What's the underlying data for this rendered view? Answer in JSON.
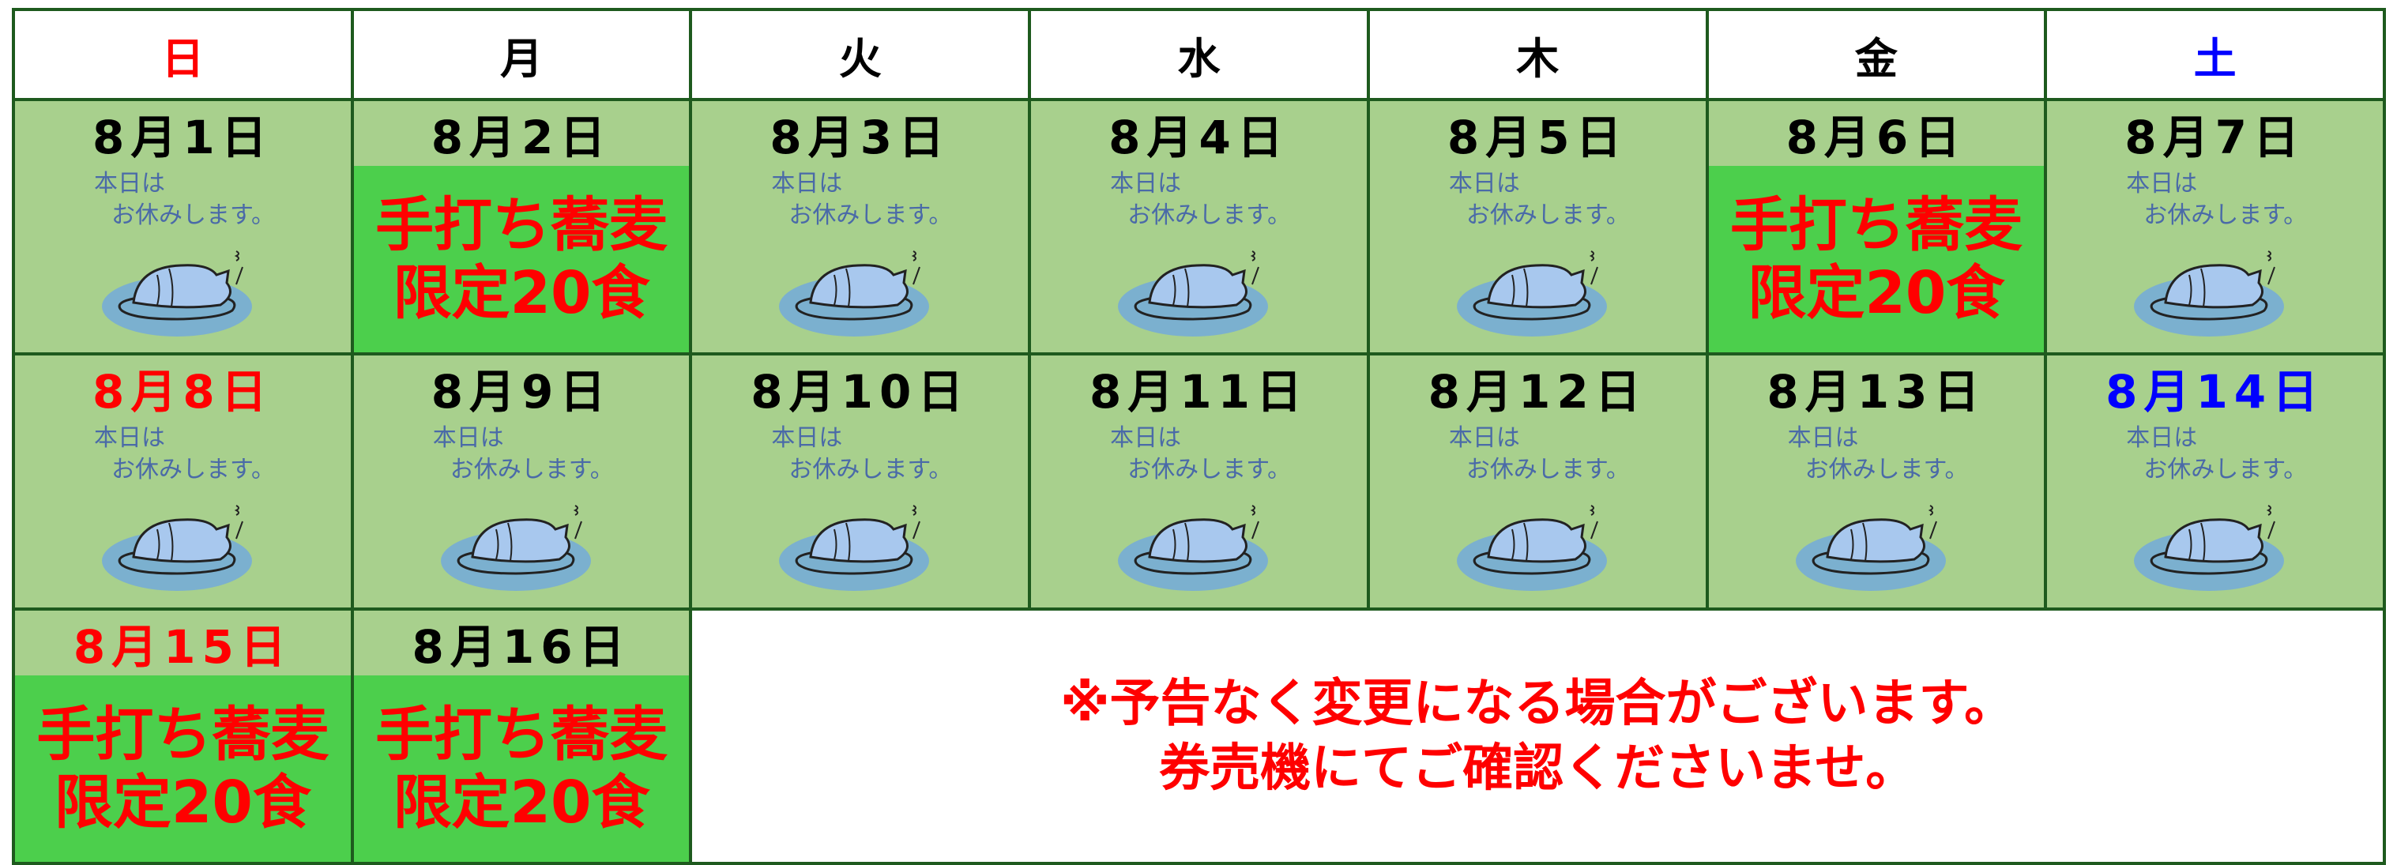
{
  "header": {
    "days": [
      {
        "label": "日",
        "color": "#ff0000"
      },
      {
        "label": "月",
        "color": "#000000"
      },
      {
        "label": "火",
        "color": "#000000"
      },
      {
        "label": "水",
        "color": "#000000"
      },
      {
        "label": "木",
        "color": "#000000"
      },
      {
        "label": "金",
        "color": "#000000"
      },
      {
        "label": "土",
        "color": "#0000ff"
      }
    ]
  },
  "cells": [
    {
      "date": "8月1日",
      "color": "#000000",
      "note": [
        "本日は",
        "お休みします。"
      ]
    },
    {
      "date": "8月2日",
      "color": "#000000",
      "special": [
        "手打ち蕎麦",
        "限定20食"
      ]
    },
    {
      "date": "8月3日",
      "color": "#000000",
      "note": [
        "本日は",
        "お休みします。"
      ]
    },
    {
      "date": "8月4日",
      "color": "#000000",
      "note": [
        "本日は",
        "お休みします。"
      ]
    },
    {
      "date": "8月5日",
      "color": "#000000",
      "note": [
        "本日は",
        "お休みします。"
      ]
    },
    {
      "date": "8月6日",
      "color": "#000000",
      "special": [
        "手打ち蕎麦",
        "限定20食"
      ]
    },
    {
      "date": "8月7日",
      "color": "#000000",
      "note": [
        "本日は",
        "お休みします。"
      ]
    },
    {
      "date": "8月8日",
      "color": "#ff0000",
      "note": [
        "本日は",
        "お休みします。"
      ]
    },
    {
      "date": "8月9日",
      "color": "#000000",
      "note": [
        "本日は",
        "お休みします。"
      ]
    },
    {
      "date": "8月10日",
      "color": "#000000",
      "note": [
        "本日は",
        "お休みします。"
      ]
    },
    {
      "date": "8月11日",
      "color": "#000000",
      "note": [
        "本日は",
        "お休みします。"
      ]
    },
    {
      "date": "8月12日",
      "color": "#000000",
      "note": [
        "本日は",
        "お休みします。"
      ]
    },
    {
      "date": "8月13日",
      "color": "#000000",
      "note": [
        "本日は",
        "お休みします。"
      ]
    },
    {
      "date": "8月14日",
      "color": "#0000ff",
      "note": [
        "本日は",
        "お休みします。"
      ]
    },
    {
      "date": "8月15日",
      "color": "#ff0000",
      "special": [
        "手打ち蕎麦",
        "限定20食"
      ]
    },
    {
      "date": "8月16日",
      "color": "#000000",
      "special": [
        "手打ち蕎麦",
        "限定20食"
      ]
    }
  ],
  "notice": [
    "※予告なく変更になる場合がございます。",
    "券売機にてご確認くださいませ。"
  ]
}
